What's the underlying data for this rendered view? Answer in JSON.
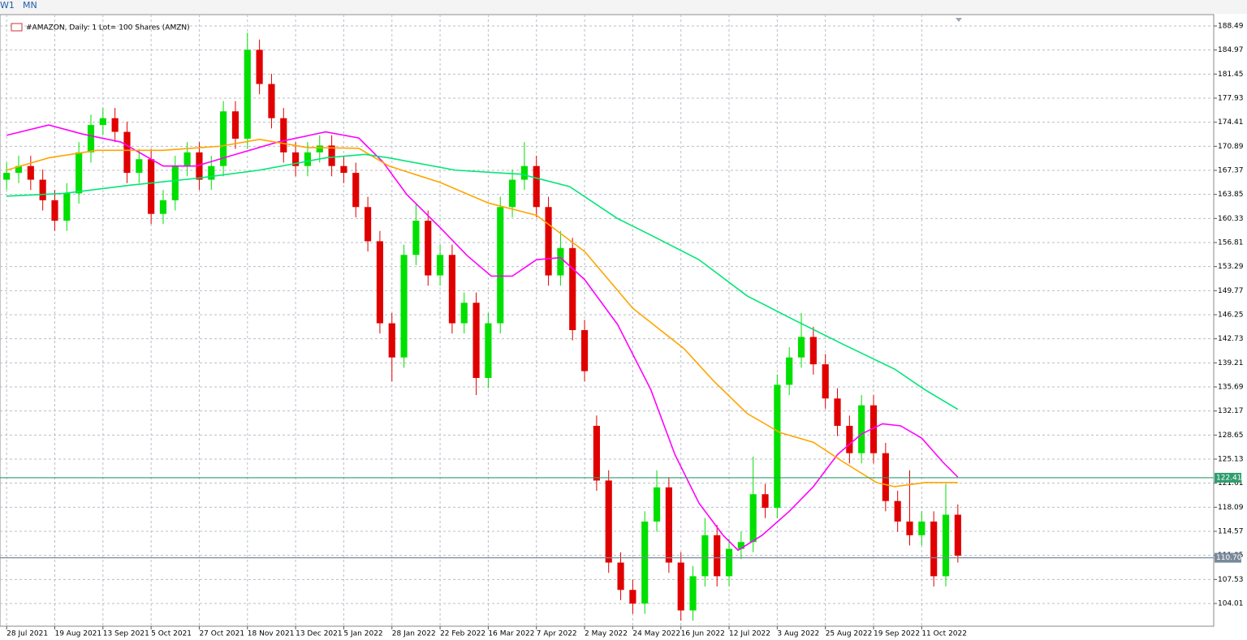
{
  "chart_data": {
    "type": "candlestick",
    "timeframes": [
      "W1",
      "MN"
    ],
    "title": "#AMAZON, Daily:  1 Lot= 100 Shares (AMZN)",
    "up_color": "#00e000",
    "down_color": "#e00000",
    "grid": true,
    "xlim": [
      -2.2,
      401
    ],
    "ylim": [
      100.69,
      190.15
    ],
    "yticks": [
      188.49,
      184.97,
      181.45,
      177.93,
      174.41,
      170.89,
      167.37,
      163.85,
      160.33,
      156.81,
      153.29,
      149.77,
      146.25,
      142.73,
      139.21,
      135.69,
      132.17,
      128.65,
      125.13,
      121.61,
      118.09,
      114.57,
      111.05,
      107.53,
      104.01
    ],
    "xticks": [
      {
        "value": 0,
        "label": "28 Jul 2021"
      },
      {
        "value": 16,
        "label": "19 Aug 2021"
      },
      {
        "value": 32,
        "label": "13 Sep 2021"
      },
      {
        "value": 48,
        "label": "5 Oct 2021"
      },
      {
        "value": 64,
        "label": "27 Oct 2021"
      },
      {
        "value": 80,
        "label": "18 Nov 2021"
      },
      {
        "value": 96,
        "label": "13 Dec 2021"
      },
      {
        "value": 112,
        "label": "5 Jan 2022"
      },
      {
        "value": 128,
        "label": "28 Jan 2022"
      },
      {
        "value": 144,
        "label": "22 Feb 2022"
      },
      {
        "value": 160,
        "label": "16 Mar 2022"
      },
      {
        "value": 176,
        "label": "7 Apr 2022"
      },
      {
        "value": 192,
        "label": "2 May 2022"
      },
      {
        "value": 208,
        "label": "24 May 2022"
      },
      {
        "value": 224,
        "label": "16 Jun 2022"
      },
      {
        "value": 240,
        "label": "12 Jul 2022"
      },
      {
        "value": 256,
        "label": "3 Aug 2022"
      },
      {
        "value": 272,
        "label": "25 Aug 2022"
      },
      {
        "value": 288,
        "label": "19 Sep 2022"
      },
      {
        "value": 304,
        "label": "11 Oct 2022"
      }
    ],
    "x": [
      0,
      4,
      8,
      12,
      16,
      20,
      24,
      28,
      32,
      36,
      40,
      44,
      48,
      52,
      56,
      60,
      64,
      68,
      72,
      76,
      80,
      84,
      88,
      92,
      96,
      100,
      104,
      108,
      112,
      116,
      120,
      124,
      128,
      132,
      136,
      140,
      144,
      148,
      152,
      156,
      160,
      164,
      168,
      172,
      176,
      180,
      184,
      188,
      192,
      196,
      200,
      204,
      208,
      212,
      216,
      220,
      224,
      228,
      232,
      236,
      240,
      244,
      248,
      252,
      256,
      260,
      264,
      268,
      272,
      276,
      280,
      284,
      288,
      292,
      296,
      300,
      304,
      308,
      312,
      316
    ],
    "open": [
      166,
      167,
      168,
      166,
      163,
      160,
      164,
      170,
      174,
      175,
      173,
      167,
      169,
      161,
      163,
      168,
      170,
      166,
      168,
      176,
      172,
      185,
      180,
      175,
      170,
      168,
      170,
      171,
      168,
      167,
      162,
      157,
      145,
      140,
      155,
      160,
      152,
      155,
      145,
      148,
      137,
      145,
      162,
      166,
      168,
      162,
      152,
      156,
      144,
      130,
      122,
      110,
      106,
      104,
      116,
      121,
      110,
      103,
      108,
      114,
      108,
      112,
      113,
      120,
      118,
      136,
      140,
      143,
      139,
      134,
      130,
      126,
      133,
      126,
      119,
      116,
      114,
      116,
      108,
      117
    ],
    "high": [
      168.5,
      169.5,
      169.5,
      167.5,
      164.5,
      165.5,
      171.5,
      175.5,
      176.5,
      176.5,
      174.5,
      170.5,
      170.5,
      164.5,
      169.5,
      171.5,
      171.5,
      169.5,
      177.5,
      177.5,
      187.5,
      186.5,
      181.5,
      176.5,
      171.5,
      171.5,
      172.5,
      172.5,
      169.5,
      168.5,
      163.5,
      158.5,
      146.5,
      156.5,
      162.5,
      161.5,
      156.5,
      156.5,
      149.5,
      149.5,
      146.5,
      163.5,
      167.5,
      171.5,
      169.5,
      163.5,
      158.5,
      157.5,
      145.5,
      131.5,
      123.5,
      111.5,
      107.5,
      117.5,
      123.5,
      122.5,
      111.5,
      109.5,
      116.5,
      115.5,
      113.5,
      114.5,
      125.5,
      121.5,
      137.5,
      141.5,
      146.5,
      144.5,
      140.5,
      135.5,
      131.5,
      134.5,
      134.5,
      127.5,
      120.5,
      123.5,
      117.5,
      117.5,
      121.5,
      118.5
    ],
    "low": [
      164.5,
      165.5,
      164.5,
      161.5,
      158.5,
      158.5,
      162.5,
      168.5,
      172.5,
      171.5,
      165.5,
      165.5,
      159.5,
      159.5,
      161.5,
      166.5,
      164.5,
      164.5,
      166.5,
      170.5,
      170.5,
      178.5,
      173.5,
      168.5,
      166.5,
      166.5,
      168.5,
      166.5,
      165.5,
      160.5,
      155.5,
      143.5,
      136.5,
      138.5,
      153.5,
      150.5,
      150.5,
      143.5,
      143.5,
      134.5,
      135.5,
      143.5,
      160.5,
      164.5,
      160.5,
      150.5,
      150.5,
      142.5,
      136.5,
      120.5,
      108.5,
      104.5,
      102.5,
      102.5,
      114.5,
      108.5,
      101.5,
      101.5,
      106.5,
      106.5,
      106.5,
      110.5,
      111.5,
      116.5,
      116.5,
      134.5,
      138.5,
      137.5,
      132.5,
      128.5,
      124.5,
      124.5,
      124.5,
      117.5,
      114.5,
      112.5,
      112.5,
      106.5,
      106.5,
      110
    ],
    "close": [
      167,
      168,
      166,
      163,
      160,
      164,
      170,
      174,
      175,
      173,
      167,
      169,
      161,
      163,
      168,
      170,
      166,
      168,
      176,
      172,
      185,
      180,
      175,
      170,
      168,
      170,
      171,
      168,
      167,
      162,
      157,
      145,
      140,
      155,
      160,
      152,
      155,
      145,
      148,
      137,
      145,
      162,
      166,
      168,
      162,
      152,
      156,
      144,
      138,
      122,
      110,
      106,
      104,
      116,
      121,
      110,
      103,
      108,
      114,
      108,
      112,
      113,
      120,
      118,
      136,
      140,
      143,
      139,
      134,
      130,
      126,
      133,
      126,
      119,
      116,
      114,
      116,
      108,
      117,
      111
    ],
    "overlays": [
      {
        "color": "#ff00ff",
        "x": [
          0,
          14,
          25,
          38,
          52,
          63,
          76,
          90,
          106,
          117,
          125,
          133,
          144,
          153,
          161,
          168,
          176,
          184,
          192,
          197,
          203,
          214,
          222,
          230,
          238,
          243,
          251,
          260,
          268,
          276,
          284,
          291,
          297,
          304,
          311,
          316
        ],
        "values": [
          172.5,
          174,
          172.7,
          171.5,
          168,
          168,
          169.7,
          171.5,
          173,
          172.1,
          168.6,
          163.8,
          159,
          154.9,
          151.9,
          151.9,
          154.3,
          154.6,
          151.4,
          148.4,
          144.8,
          135.3,
          125.8,
          118.7,
          114,
          111.8,
          114,
          117.5,
          121.1,
          125.8,
          128.8,
          130.3,
          130,
          128.2,
          124.7,
          122.5
        ]
      },
      {
        "color": "#ffa500",
        "x": [
          0,
          14,
          30,
          52,
          71,
          84,
          100,
          117,
          127,
          144,
          160,
          176,
          192,
          208,
          225,
          235,
          246,
          257,
          268,
          278,
          289,
          295,
          305,
          316
        ],
        "values": [
          167.4,
          169.2,
          170.3,
          170.3,
          170.9,
          171.9,
          170.7,
          170.6,
          168,
          165.6,
          162.6,
          160.8,
          155.5,
          147.2,
          141.3,
          136.5,
          131.8,
          129,
          127.6,
          124.7,
          121.7,
          121.1,
          121.7,
          121.7
        ]
      },
      {
        "color": "#00e676",
        "x": [
          0,
          19,
          41,
          63,
          84,
          106,
          119,
          127,
          149,
          171,
          187,
          203,
          214,
          230,
          246,
          262,
          278,
          295,
          305,
          316
        ],
        "values": [
          163.6,
          164,
          165.2,
          166.2,
          167.4,
          169.2,
          169.7,
          169.2,
          167.4,
          166.8,
          165,
          160.3,
          157.9,
          154.3,
          149,
          145.4,
          141.9,
          138.3,
          135.3,
          132.4
        ]
      }
    ],
    "levels": [
      {
        "value": 122.41,
        "color": "#2e9e6e"
      },
      {
        "value": 110.7,
        "label": "110.70",
        "color": "#7a8a9c"
      }
    ]
  }
}
